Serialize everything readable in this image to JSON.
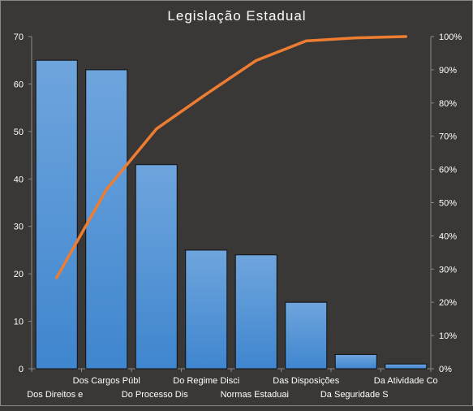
{
  "chart_data": {
    "type": "bar",
    "title": "Legislação  Estadual",
    "categories": [
      "Dos Direitos e",
      "Dos Cargos Públ",
      "Do Processo Dis",
      "Do Regime Disci",
      "Normas Estaduai",
      "Das Disposições",
      "Da Seguridade S",
      "Da Atividade Co"
    ],
    "series": [
      {
        "type": "bar",
        "values": [
          65,
          63,
          43,
          25,
          24,
          14,
          3,
          1
        ]
      },
      {
        "type": "line",
        "axis": "right",
        "values": [
          27.4,
          54.0,
          72.2,
          82.7,
          92.8,
          98.7,
          99.6,
          100
        ]
      }
    ],
    "ylim": [
      0,
      70
    ],
    "yticks": [
      "0",
      "10",
      "20",
      "30",
      "40",
      "50",
      "60",
      "70"
    ],
    "y2lim": [
      0,
      100
    ],
    "y2ticks": [
      "0%",
      "10%",
      "20%",
      "30%",
      "40%",
      "50%",
      "60%",
      "70%",
      "80%",
      "90%",
      "100%"
    ],
    "grid": false,
    "legend": "none",
    "colors": {
      "background": "#3a3836",
      "bar_fill_top": "#6fa5dd",
      "bar_fill_bottom": "#3f86cf",
      "bar_stroke": "#111111",
      "line": "#ee7d31",
      "axis": "#8a8886",
      "text": "#ffffff"
    }
  }
}
